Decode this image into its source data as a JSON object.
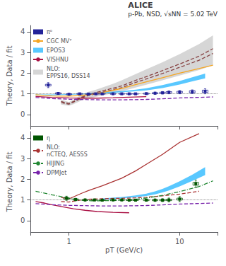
{
  "chart_data": [
    {
      "type": "line",
      "annotations": [
        "ALICE",
        "p-Pb, NSD, √sNN = 5.02 TeV"
      ],
      "y_label": "Theory, Data / fit",
      "log": "x",
      "xlim": [
        0.45,
        22
      ],
      "xticks": [
        1,
        10
      ],
      "ylim": [
        -0.55,
        4.3
      ],
      "yticks": [
        0,
        1,
        2,
        3,
        4
      ],
      "grid": false,
      "tick_labels": "y",
      "legend": "upper left",
      "legend_entries": [
        "π⁰",
        "CGC MV⁷",
        "EPOS3",
        "VISHNU",
        "NLO:\nEPPS16, DSS14"
      ],
      "reference_line": {
        "y": 1.0,
        "color": "#808080",
        "line_style": "dotted"
      },
      "series": [
        {
          "type": "band",
          "name": "NLO:\nEPPS16, DSS14",
          "color": "#c0c0c0",
          "x": [
            0.85,
            1.0,
            1.1,
            1.3,
            1.5,
            1.8,
            2.0,
            2.5,
            3.0,
            4.0,
            5.0,
            7.0,
            10.0,
            15.0,
            20.0
          ],
          "ylo": [
            0.48,
            0.42,
            0.5,
            0.68,
            0.78,
            0.87,
            0.92,
            1.02,
            1.12,
            1.3,
            1.44,
            1.65,
            1.88,
            2.15,
            2.38
          ],
          "yhi": [
            0.72,
            0.6,
            0.72,
            0.95,
            1.1,
            1.22,
            1.3,
            1.48,
            1.65,
            1.95,
            2.18,
            2.52,
            2.92,
            3.4,
            3.82
          ]
        },
        {
          "type": "line",
          "color": "#884444",
          "line_style": "dashed",
          "x": [
            0.85,
            1.0,
            1.1,
            1.3,
            1.5,
            2.0,
            3.0,
            4.0,
            5.0,
            7.0,
            10.0,
            15.0,
            20.0
          ],
          "values": [
            0.58,
            0.5,
            0.6,
            0.8,
            0.92,
            1.08,
            1.3,
            1.55,
            1.72,
            1.98,
            2.28,
            2.62,
            2.95
          ]
        },
        {
          "type": "line",
          "color": "#884444",
          "line_style": "dashed",
          "x": [
            0.85,
            1.0,
            1.1,
            1.3,
            1.5,
            2.0,
            3.0,
            4.0,
            5.0,
            7.0,
            10.0,
            15.0,
            20.0
          ],
          "values": [
            0.63,
            0.53,
            0.63,
            0.84,
            0.96,
            1.14,
            1.38,
            1.65,
            1.83,
            2.12,
            2.44,
            2.82,
            3.18
          ]
        },
        {
          "type": "line",
          "name": "CGC MV⁷",
          "color": "#f5a623",
          "line_style": "solid",
          "x": [
            0.5,
            0.6,
            0.7,
            0.8,
            1.0,
            1.2,
            1.5,
            2.0,
            3.0,
            4.0,
            5.0,
            7.0,
            10.0,
            15.0,
            20.0
          ],
          "values": [
            0.96,
            0.92,
            0.9,
            0.89,
            0.89,
            0.91,
            0.96,
            1.06,
            1.26,
            1.44,
            1.58,
            1.78,
            2.0,
            2.22,
            2.38
          ]
        },
        {
          "type": "band",
          "name": "EPOS3",
          "color": "#00aaff",
          "x": [
            0.5,
            0.7,
            1.0,
            1.5,
            2.0,
            3.0,
            4.0,
            5.0,
            7.0,
            10.0,
            13.0,
            17.0
          ],
          "ylo": [
            0.93,
            0.93,
            0.95,
            0.99,
            1.02,
            1.07,
            1.12,
            1.17,
            1.28,
            1.45,
            1.6,
            1.75
          ],
          "yhi": [
            0.97,
            0.97,
            0.99,
            1.03,
            1.07,
            1.13,
            1.2,
            1.27,
            1.42,
            1.62,
            1.8,
            1.98
          ]
        },
        {
          "type": "line",
          "name": "VISHNU",
          "color": "#aa1144",
          "line_style": "solid",
          "x": [
            0.5,
            0.7,
            1.0,
            1.3,
            1.8,
            2.5,
            3.5,
            5.0
          ],
          "values": [
            0.87,
            0.83,
            0.8,
            0.79,
            0.79,
            0.81,
            0.84,
            0.86
          ]
        },
        {
          "type": "line",
          "name": "DPMJet",
          "color": "#7722aa",
          "line_style": "dashed",
          "x": [
            0.5,
            0.7,
            1.0,
            1.5,
            2.0,
            3.0,
            4.0,
            5.0,
            7.0,
            10.0,
            15.0,
            20.0
          ],
          "values": [
            0.82,
            0.77,
            0.74,
            0.72,
            0.71,
            0.71,
            0.72,
            0.73,
            0.76,
            0.8,
            0.83,
            0.85
          ]
        },
        {
          "type": "points",
          "name": "π⁰",
          "color": "#222299",
          "marker": "square",
          "x": [
            0.65,
            0.8,
            1.0,
            1.25,
            1.5,
            1.75,
            2.0,
            2.5,
            3.0,
            3.5,
            4.0,
            5.0,
            6.0,
            7.0,
            8.0,
            10.0,
            13.0,
            17.0
          ],
          "values": [
            1.42,
            1.02,
            0.98,
            1.0,
            0.99,
            1.0,
            1.0,
            1.0,
            1.0,
            1.0,
            1.0,
            1.01,
            1.03,
            1.05,
            1.07,
            1.08,
            1.1,
            1.12
          ],
          "stat_err": [
            0.12,
            0.05,
            0.04,
            0.03,
            0.03,
            0.03,
            0.03,
            0.03,
            0.03,
            0.03,
            0.03,
            0.04,
            0.05,
            0.06,
            0.07,
            0.08,
            0.09,
            0.12
          ],
          "syst_err": [
            0.04,
            0.03,
            0.025,
            0.022,
            0.02,
            0.02,
            0.02,
            0.02,
            0.02,
            0.02,
            0.02,
            0.025,
            0.028,
            0.03,
            0.035,
            0.04,
            0.05,
            0.06
          ]
        }
      ]
    },
    {
      "type": "line",
      "x_label": "pT (GeV/c)",
      "y_label": "Theory, Data / fit",
      "log": "x",
      "xlim": [
        0.45,
        22
      ],
      "xticks": [
        1,
        10
      ],
      "ylim": [
        -0.55,
        4.3
      ],
      "yticks": [
        0,
        1,
        2,
        3,
        4
      ],
      "grid": false,
      "legend": "upper left",
      "legend_entries": [
        "η",
        "NLO:\nnCTEQ, AESSS",
        "HIJING",
        "DPMJet"
      ],
      "reference_line": {
        "y": 1.0,
        "color": "#808080",
        "line_style": "dotted"
      },
      "series": [
        {
          "type": "line",
          "name": "NLO:\nnCTEQ, AESSS",
          "color": "#aa3333",
          "line_style": "dashed",
          "x": [
            0.85,
            1.0,
            1.1,
            1.3,
            1.5,
            2.0,
            3.0,
            4.0,
            5.0,
            7.0,
            10.0,
            15.0
          ],
          "values": [
            0.92,
            0.9,
            0.94,
            1.0,
            1.03,
            1.06,
            1.08,
            1.1,
            1.13,
            1.2,
            1.28,
            1.42
          ]
        },
        {
          "type": "line",
          "name": "NLO:\nnCTEQ, AESSS",
          "color": "#aa3333",
          "line_style": "solid",
          "x": [
            0.85,
            1.0,
            1.1,
            1.3,
            1.5,
            2.0,
            3.0,
            4.0,
            5.0,
            7.0,
            10.0,
            15.0
          ],
          "values": [
            1.12,
            1.05,
            1.15,
            1.32,
            1.45,
            1.68,
            2.05,
            2.4,
            2.72,
            3.2,
            3.78,
            4.2
          ]
        },
        {
          "type": "band",
          "name": "EPOS3",
          "color": "#00aaff",
          "x": [
            2.0,
            3.0,
            4.0,
            5.0,
            6.0,
            7.0,
            8.0,
            10.0,
            13.0,
            17.0
          ],
          "ylo": [
            1.02,
            1.07,
            1.13,
            1.19,
            1.27,
            1.36,
            1.46,
            1.65,
            1.92,
            2.2
          ],
          "yhi": [
            1.07,
            1.14,
            1.22,
            1.3,
            1.41,
            1.53,
            1.66,
            1.9,
            2.22,
            2.58
          ]
        },
        {
          "type": "line",
          "name": "VISHNU",
          "color": "#aa1144",
          "line_style": "solid",
          "x": [
            0.5,
            0.6,
            0.7,
            0.9,
            1.1,
            1.4,
            1.8,
            2.5,
            3.5
          ],
          "values": [
            0.92,
            0.85,
            0.77,
            0.66,
            0.57,
            0.5,
            0.44,
            0.4,
            0.38
          ]
        },
        {
          "type": "line",
          "name": "HIJING",
          "color": "#228833",
          "line_style": "dashdot",
          "x": [
            0.5,
            0.7,
            1.0,
            1.3,
            1.6,
            2.0,
            2.5,
            3.0,
            4.0,
            5.0,
            7.0,
            10.0,
            15.0,
            20.0
          ],
          "values": [
            1.42,
            1.25,
            1.08,
            0.99,
            0.96,
            0.96,
            0.97,
            0.99,
            1.03,
            1.09,
            1.22,
            1.4,
            1.65,
            1.92
          ]
        },
        {
          "type": "line",
          "name": "DPMJet",
          "color": "#7722aa",
          "line_style": "dashed",
          "x": [
            0.5,
            0.7,
            1.0,
            1.5,
            2.0,
            3.0,
            4.0,
            5.0,
            7.0,
            10.0,
            15.0,
            20.0
          ],
          "values": [
            0.82,
            0.77,
            0.74,
            0.72,
            0.71,
            0.71,
            0.72,
            0.73,
            0.76,
            0.8,
            0.83,
            0.85
          ]
        },
        {
          "type": "points",
          "name": "η",
          "color": "#005500",
          "marker": "square",
          "x": [
            0.95,
            1.15,
            1.4,
            1.7,
            2.0,
            2.5,
            3.0,
            3.5,
            4.0,
            5.0,
            6.0,
            7.0,
            8.0,
            10.0,
            14.0
          ],
          "values": [
            1.08,
            1.02,
            1.0,
            1.0,
            0.99,
            1.0,
            1.0,
            0.99,
            0.99,
            0.99,
            0.99,
            0.99,
            1.0,
            1.04,
            1.78
          ],
          "stat_err": [
            0.1,
            0.06,
            0.05,
            0.04,
            0.04,
            0.04,
            0.04,
            0.04,
            0.04,
            0.05,
            0.06,
            0.07,
            0.09,
            0.12,
            0.18
          ],
          "syst_err": [
            0.035,
            0.03,
            0.025,
            0.022,
            0.02,
            0.02,
            0.02,
            0.02,
            0.02,
            0.025,
            0.028,
            0.03,
            0.035,
            0.045,
            0.07
          ]
        }
      ]
    }
  ]
}
